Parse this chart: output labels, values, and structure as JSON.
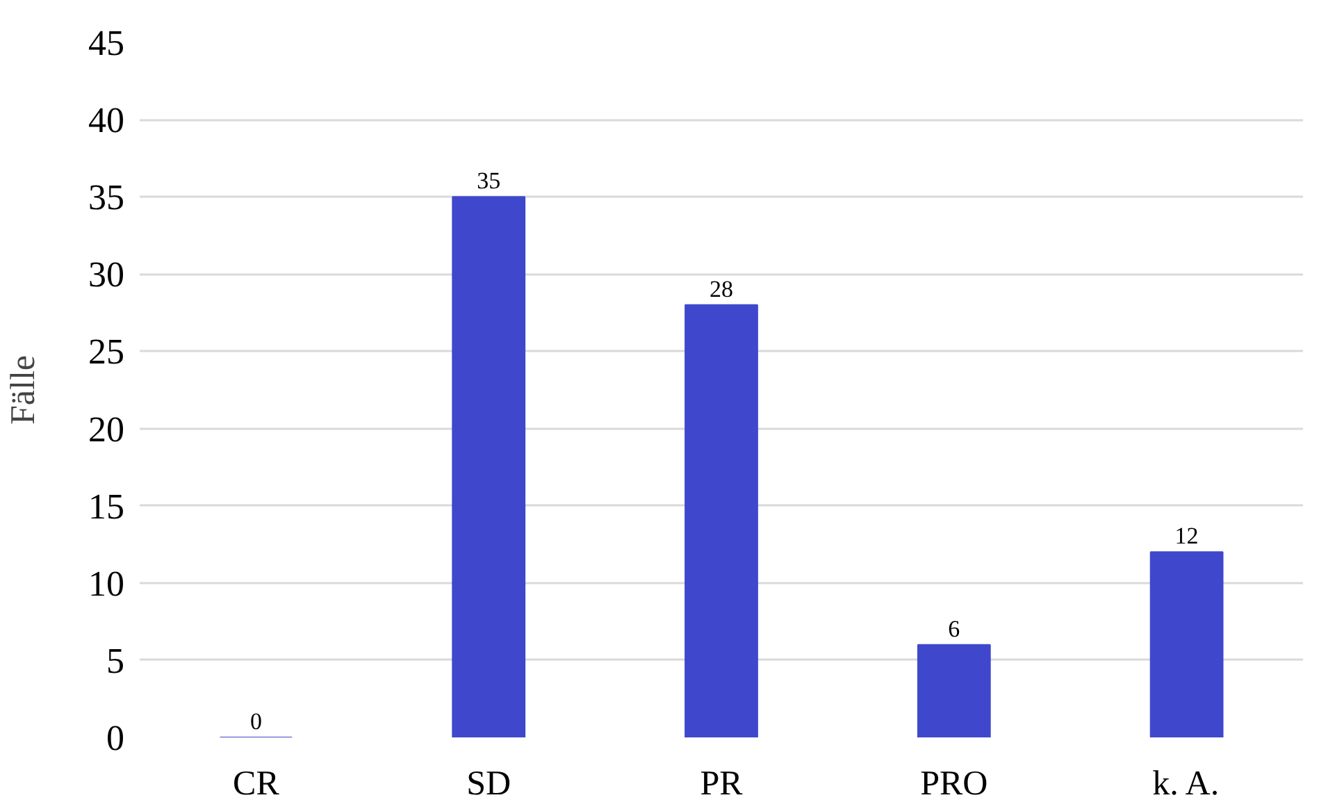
{
  "chart_data": {
    "type": "bar",
    "ylabel": "Fälle",
    "categories": [
      "CR",
      "SD",
      "PR",
      "PRO",
      "k. A."
    ],
    "values": [
      0,
      35,
      28,
      6,
      12
    ],
    "color": "#3f48cc",
    "ylim": [
      0,
      45
    ],
    "yticks": [
      0,
      5,
      10,
      15,
      20,
      25,
      30,
      35,
      40,
      45
    ],
    "grid": "y",
    "data_labels": true
  }
}
